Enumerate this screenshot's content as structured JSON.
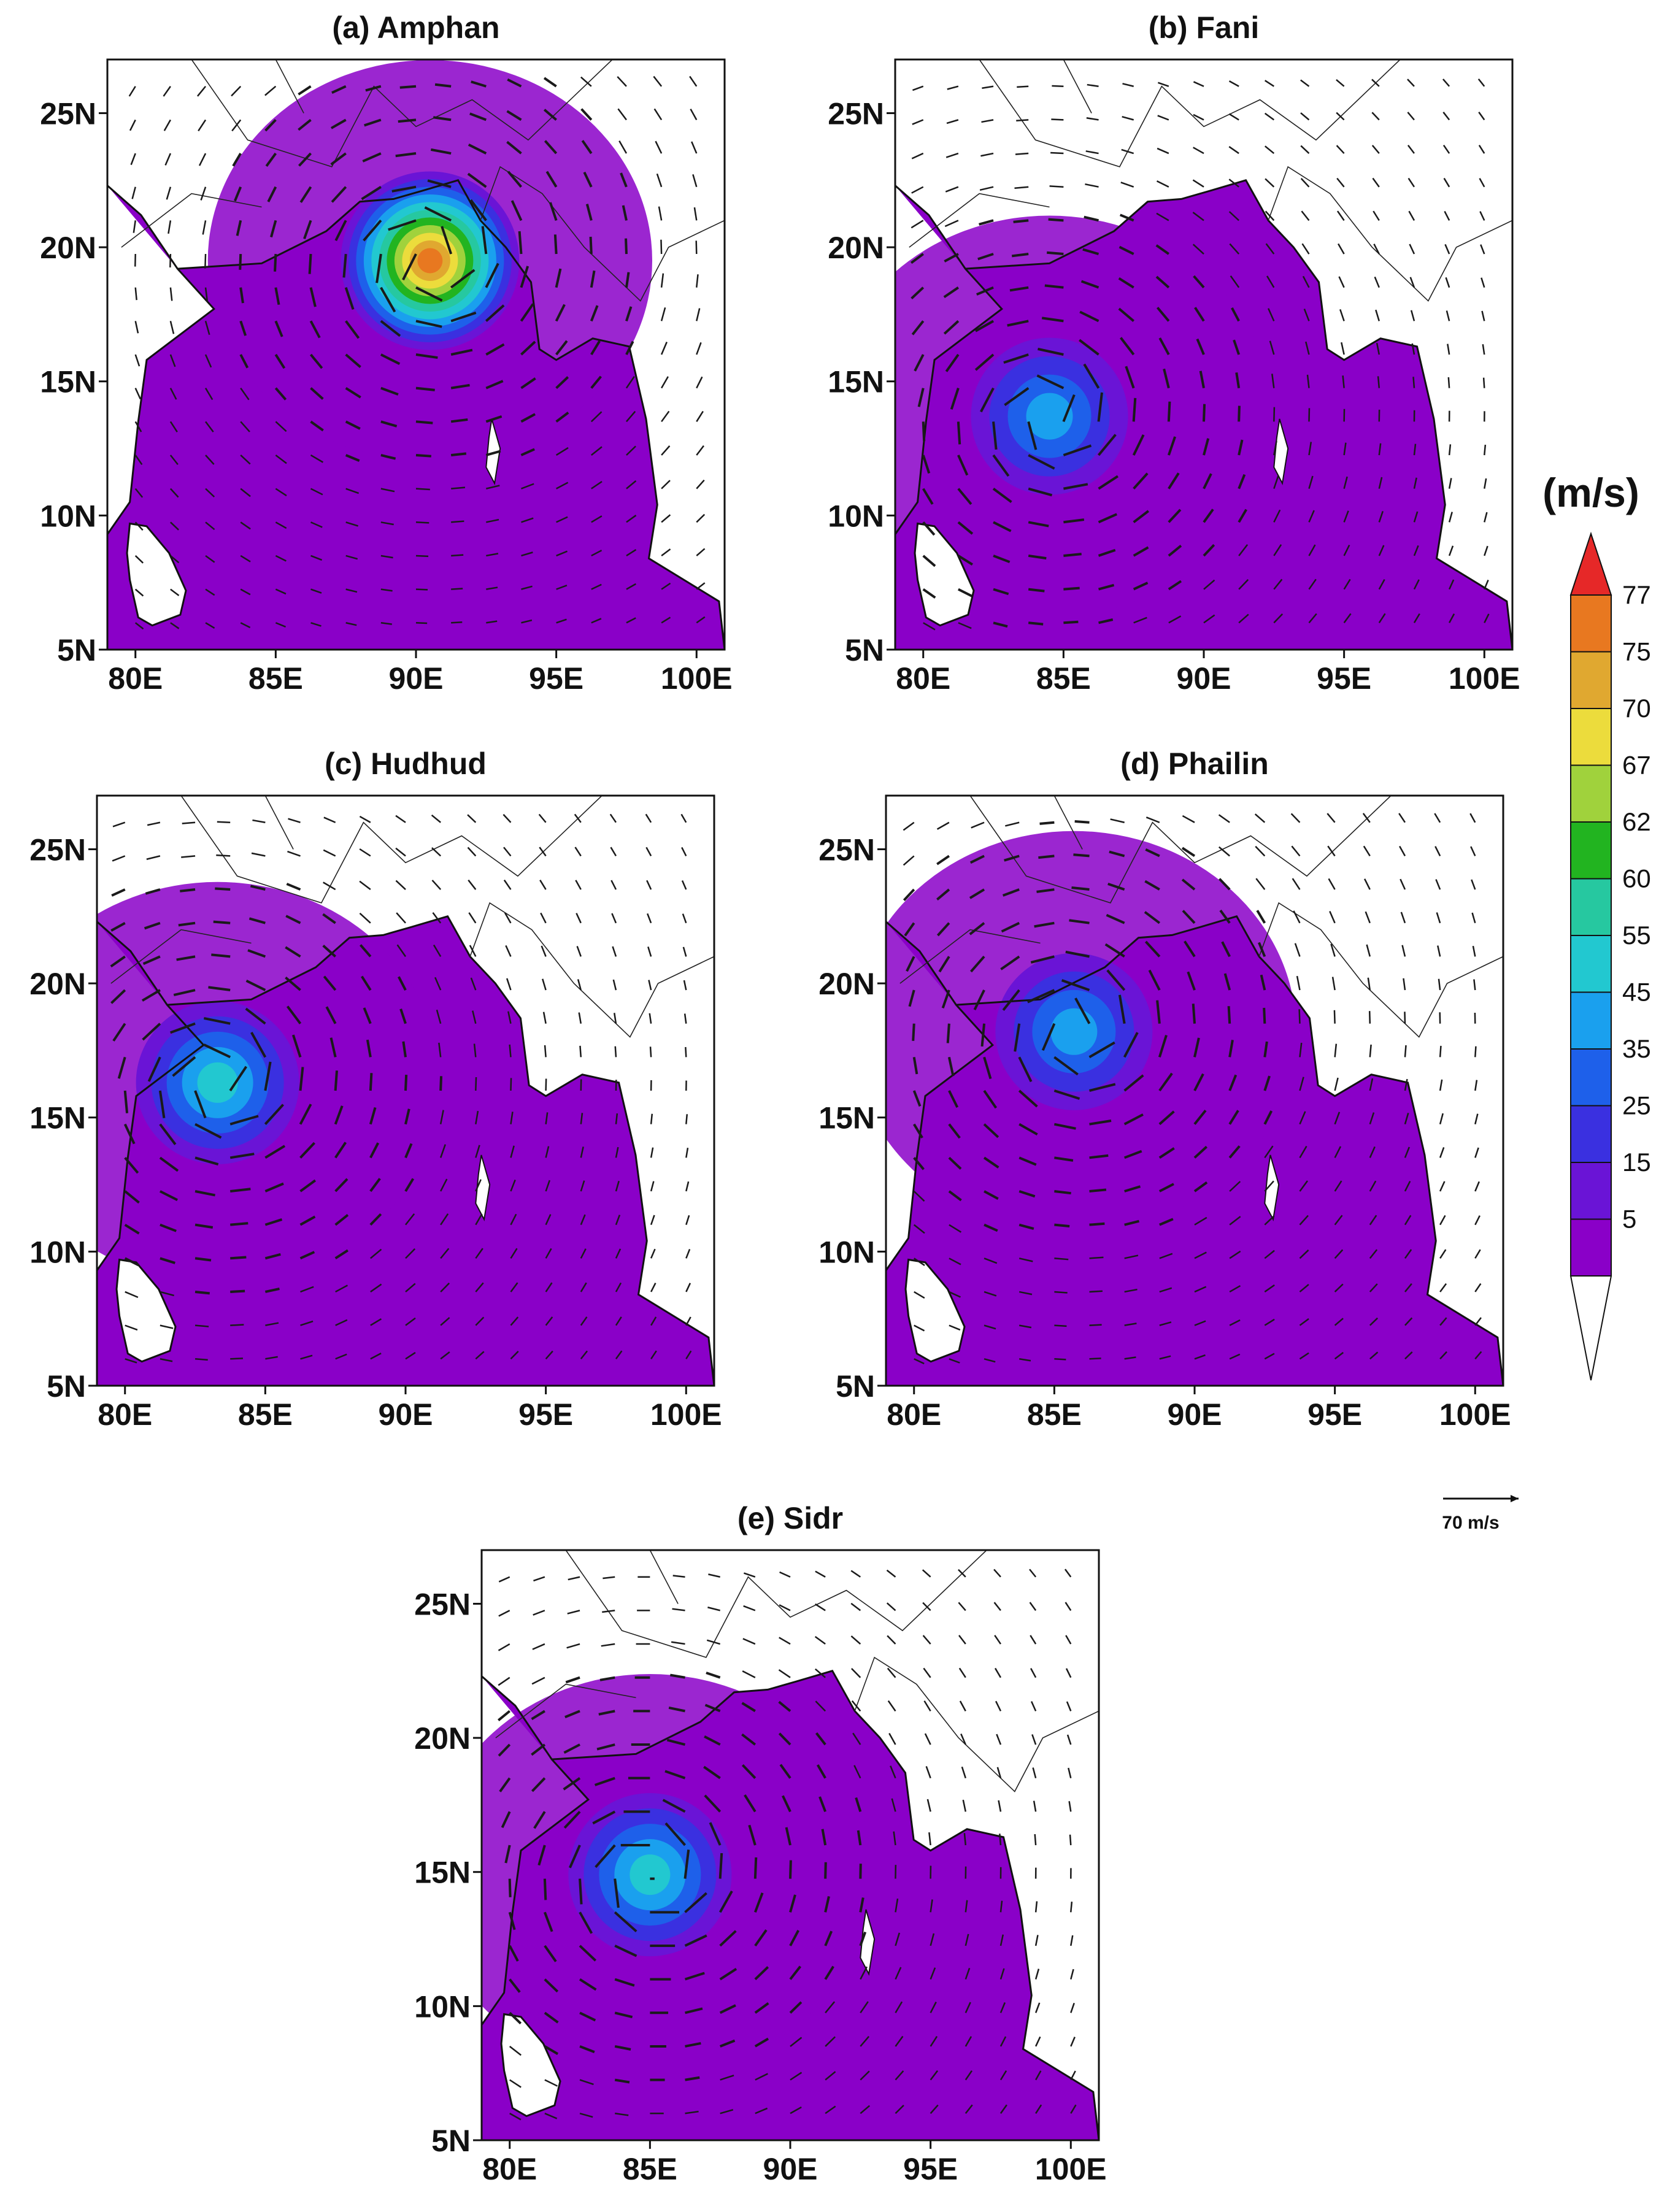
{
  "panels": [
    {
      "id": "a",
      "title": "(a) Amphan",
      "center_lon": 90.5,
      "center_lat": 19.5,
      "peak": "77"
    },
    {
      "id": "b",
      "title": "(b) Fani",
      "center_lon": 84.5,
      "center_lat": 13.7,
      "peak": "45"
    },
    {
      "id": "c",
      "title": "(c) Hudhud",
      "center_lon": 83.3,
      "center_lat": 16.3,
      "peak": "55"
    },
    {
      "id": "d",
      "title": "(d) Phailin",
      "center_lon": 85.7,
      "center_lat": 18.2,
      "peak": "45"
    },
    {
      "id": "e",
      "title": "(e) Sidr",
      "center_lon": 85.0,
      "center_lat": 14.9,
      "peak": "55"
    }
  ],
  "axes": {
    "x_ticks": [
      "80E",
      "85E",
      "90E",
      "95E",
      "100E"
    ],
    "y_ticks": [
      "25N",
      "20N",
      "15N",
      "10N",
      "5N"
    ],
    "x_values": [
      80,
      85,
      90,
      95,
      100
    ],
    "y_values": [
      25,
      20,
      15,
      10,
      5
    ],
    "lon_range": [
      79,
      101
    ],
    "lat_range": [
      5,
      27
    ]
  },
  "colorbar": {
    "title": "(m/s)",
    "levels": [
      "5",
      "15",
      "25",
      "35",
      "45",
      "55",
      "60",
      "62",
      "67",
      "70",
      "75",
      "77"
    ],
    "colors": [
      "#8a00c8",
      "#6a14d6",
      "#3a30e0",
      "#1e60ea",
      "#1aa0ee",
      "#22c8d0",
      "#26c8a0",
      "#22b420",
      "#a0d23c",
      "#ecdc3c",
      "#e0a830",
      "#e87820",
      "#e62828"
    ]
  },
  "vector_ref": {
    "label": "70 m/s"
  },
  "map_colors": {
    "land": "#ffffff",
    "coast": "#111111",
    "arrow": "#1a1a1a"
  }
}
